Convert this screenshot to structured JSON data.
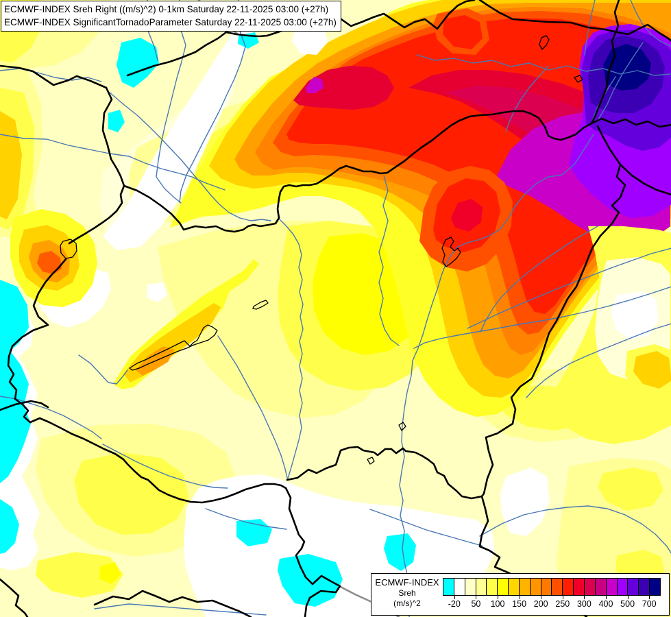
{
  "header": {
    "line1": "ECMWF-INDEX Sreh Right ((m/s)^2) 0-1km Saturday 22-11-2025 03:00 (+27h)",
    "line2": "ECMWF-INDEX SignificantTornadoParameter Saturday 22-11-2025 03:00 (+27h)"
  },
  "legend": {
    "title": "ECMWF-INDEX",
    "parameter": "Sreh",
    "unit": "(m/s)^2",
    "ticks": [
      "-20",
      "50",
      "100",
      "150",
      "200",
      "250",
      "300",
      "400",
      "500",
      "700"
    ],
    "palette": [
      "#00FFFF",
      "#FFFFFF",
      "#FFFFC8",
      "#FFFF96",
      "#FFFF4B",
      "#FFFF00",
      "#FFD700",
      "#FFB400",
      "#FF9600",
      "#FF7800",
      "#FF5000",
      "#FF1E00",
      "#F00028",
      "#DC0050",
      "#C80082",
      "#C800C8",
      "#A000FF",
      "#6400DC",
      "#3C00B4",
      "#000082"
    ]
  },
  "map": {
    "colors": {
      "country_border": "#000000",
      "river": "#4878B4",
      "major_river_gray": "#8C8C8C",
      "lake_outline": "#000000",
      "min_fill": "#00FFFF",
      "max_fill": "#000082"
    }
  }
}
